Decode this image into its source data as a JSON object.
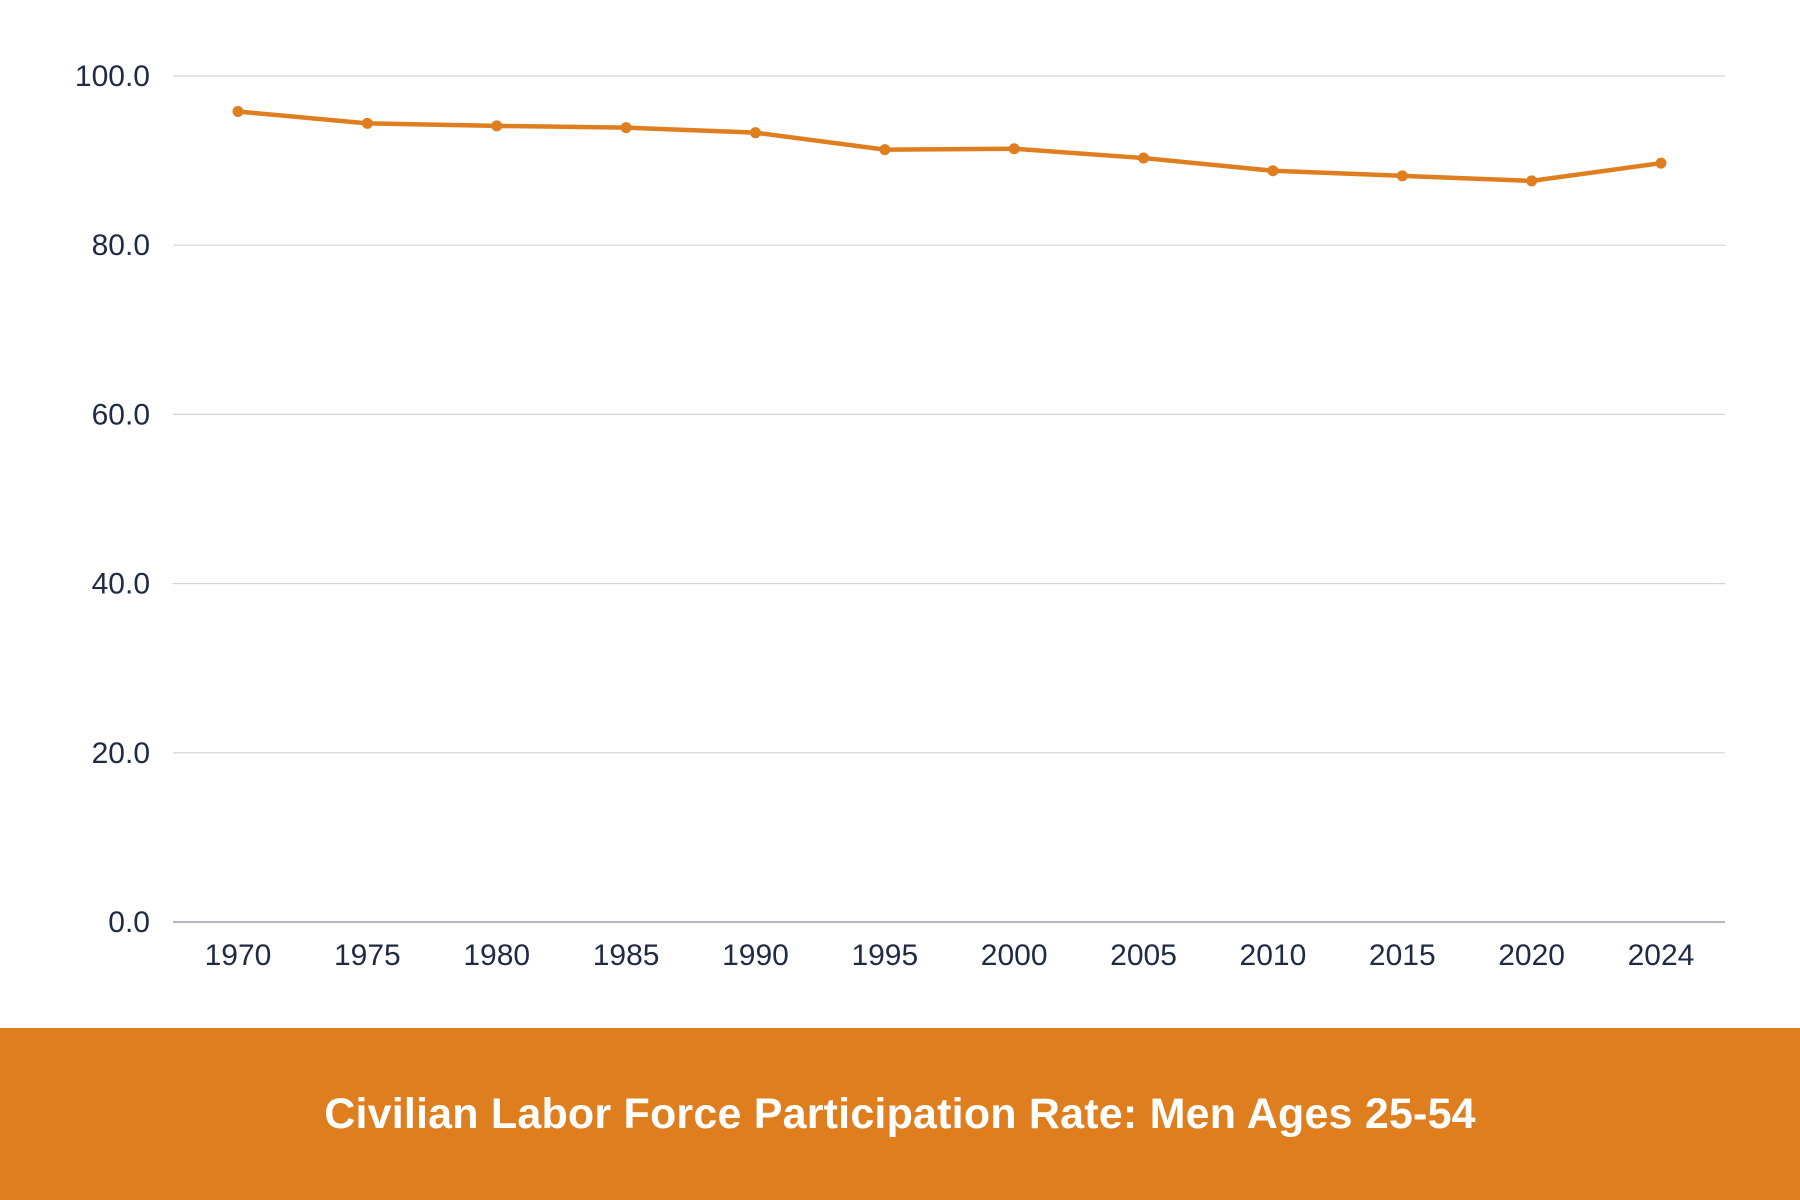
{
  "chart_data": {
    "type": "line",
    "title": "Civilian Labor Force Participation Rate: Men Ages 25-54",
    "xlabel": "",
    "ylabel": "",
    "categories": [
      "1970",
      "1975",
      "1980",
      "1985",
      "1990",
      "1995",
      "2000",
      "2005",
      "2010",
      "2015",
      "2020",
      "2024"
    ],
    "series": [
      {
        "values": [
          95.8,
          94.4,
          94.1,
          93.9,
          93.3,
          91.3,
          91.4,
          90.3,
          88.8,
          88.2,
          87.6,
          89.7
        ]
      }
    ],
    "ylim": [
      0,
      100
    ],
    "yticks": [
      "0.0",
      "20.0",
      "40.0",
      "60.0",
      "80.0",
      "100.0"
    ],
    "grid": "horizontal",
    "legend": "none"
  },
  "colors": {
    "line": "#df7e1f",
    "banner": "#df7e1f",
    "grid": "#d0d3d8",
    "axis": "#9aa0a8",
    "text": "#1f2a44"
  }
}
